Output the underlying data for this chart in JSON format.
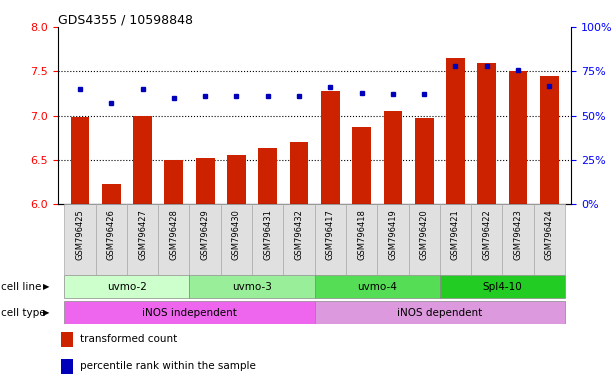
{
  "title": "GDS4355 / 10598848",
  "samples": [
    "GSM796425",
    "GSM796426",
    "GSM796427",
    "GSM796428",
    "GSM796429",
    "GSM796430",
    "GSM796431",
    "GSM796432",
    "GSM796417",
    "GSM796418",
    "GSM796419",
    "GSM796420",
    "GSM796421",
    "GSM796422",
    "GSM796423",
    "GSM796424"
  ],
  "bar_values": [
    6.98,
    6.22,
    7.0,
    6.5,
    6.52,
    6.55,
    6.63,
    6.7,
    7.28,
    6.87,
    7.05,
    6.97,
    7.65,
    7.6,
    7.5,
    7.45
  ],
  "dot_percentiles": [
    65,
    57,
    65,
    60,
    61,
    61,
    61,
    61,
    66,
    63,
    62,
    62,
    78,
    78,
    76,
    67
  ],
  "ylim": [
    6.0,
    8.0
  ],
  "y2lim": [
    0,
    100
  ],
  "yticks": [
    6.0,
    6.5,
    7.0,
    7.5,
    8.0
  ],
  "y2ticks": [
    0,
    25,
    50,
    75,
    100
  ],
  "y2ticklabels": [
    "0%",
    "25%",
    "50%",
    "75%",
    "100%"
  ],
  "bar_color": "#CC2200",
  "dot_color": "#0000BB",
  "bar_bottom": 6.0,
  "cell_lines": [
    {
      "label": "uvmo-2",
      "start": 0,
      "end": 4,
      "color": "#ccffcc"
    },
    {
      "label": "uvmo-3",
      "start": 4,
      "end": 8,
      "color": "#99ee99"
    },
    {
      "label": "uvmo-4",
      "start": 8,
      "end": 12,
      "color": "#55dd55"
    },
    {
      "label": "Spl4-10",
      "start": 12,
      "end": 16,
      "color": "#22cc22"
    }
  ],
  "cell_types": [
    {
      "label": "iNOS independent",
      "start": 0,
      "end": 8,
      "color": "#ee66ee"
    },
    {
      "label": "iNOS dependent",
      "start": 8,
      "end": 16,
      "color": "#dd99dd"
    }
  ],
  "cell_line_label": "cell line",
  "cell_type_label": "cell type",
  "legend_items": [
    "transformed count",
    "percentile rank within the sample"
  ]
}
